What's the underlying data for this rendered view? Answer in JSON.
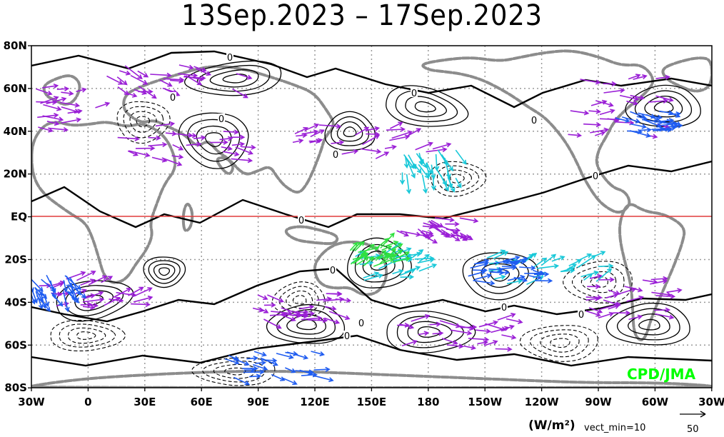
{
  "title": "13Sep.2023 – 17Sep.2023",
  "credit": "CPD/JMA",
  "units_label": "(W/m²)",
  "vector_min_label": "vect_min=10",
  "reference_vector_value": "50",
  "lat_labels": [
    "80N",
    "60N",
    "40N",
    "20N",
    "EQ",
    "20S",
    "40S",
    "60S",
    "80S"
  ],
  "lon_labels": [
    "30W",
    "0",
    "30E",
    "60E",
    "90E",
    "120E",
    "150E",
    "180",
    "150W",
    "120W",
    "90W",
    "60W",
    "30W"
  ],
  "contour_zero_label": "0",
  "colors": {
    "coastline": "#8c8c8c",
    "contour": "#000000",
    "equator": "#e03c3c",
    "arrow_weak": "#9a1fd6",
    "arrow_medium": "#1f5cf0",
    "arrow_strong": "#18c8d8",
    "arrow_strongest": "#30e040",
    "credit": "#00ff00"
  }
}
